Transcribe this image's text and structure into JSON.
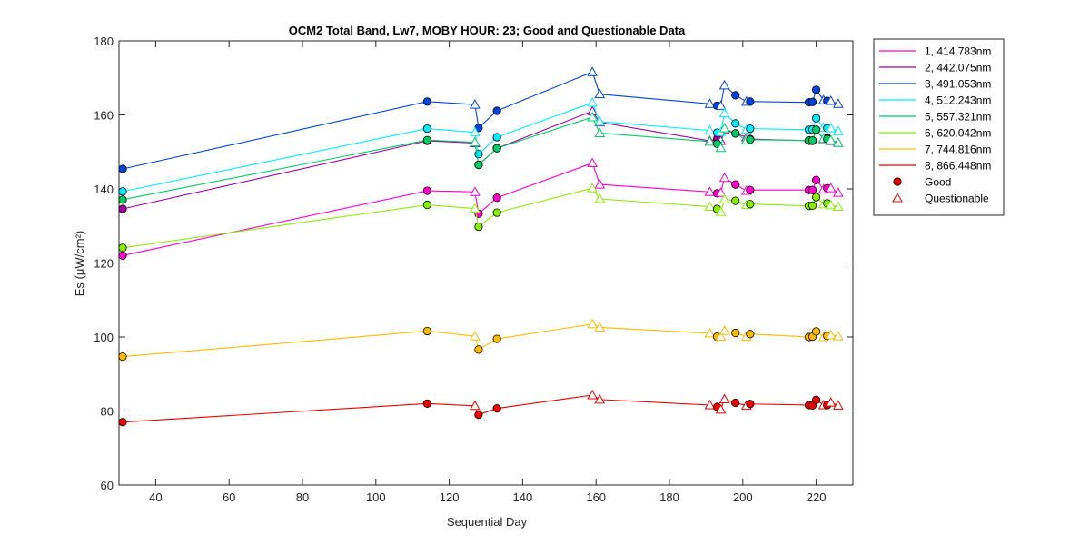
{
  "chart_data": {
    "type": "line",
    "title": "OCM2 Total Band,  Lw7, MOBY HOUR: 23;  Good and Questionable Data",
    "xlabel": "Sequential Day",
    "ylabel": "Es (μW/cm²)",
    "xlim": [
      30,
      230
    ],
    "ylim": [
      60,
      180
    ],
    "xticks": [
      40,
      60,
      80,
      100,
      120,
      140,
      160,
      180,
      200,
      220
    ],
    "yticks": [
      60,
      80,
      100,
      120,
      140,
      160,
      180
    ],
    "grid": false,
    "legend_position": "outside-right-top",
    "x": [
      31,
      114,
      127,
      128,
      133,
      159,
      161,
      191,
      193,
      194,
      195,
      198,
      201,
      202,
      218,
      219,
      220,
      222,
      223,
      224,
      226
    ],
    "quality": [
      "G",
      "G",
      "Q",
      "G",
      "G",
      "Q",
      "Q",
      "Q",
      "G",
      "Q",
      "Q",
      "G",
      "Q",
      "G",
      "G",
      "G",
      "G",
      "Q",
      "G",
      "Q",
      "Q"
    ],
    "series": [
      {
        "name": "1, 414.783nm",
        "color": "#ff00cc",
        "values": [
          122,
          139.5,
          139.2,
          133.3,
          137.6,
          147,
          141.2,
          139.2,
          138.8,
          139,
          143,
          141.2,
          139.5,
          139.7,
          139.7,
          139.7,
          142.4,
          139.9,
          140.2,
          140.2,
          139
        ]
      },
      {
        "name": "2, 442.075nm",
        "color": "#a000a0",
        "values": [
          134.6,
          153,
          152.4,
          146.5,
          151,
          161,
          158,
          153,
          153.5,
          153,
          156,
          155,
          154,
          153.5,
          153,
          153,
          156,
          153.5,
          153.8,
          153,
          152.5
        ]
      },
      {
        "name": "3, 491.053nm",
        "color": "#0044dd",
        "values": [
          145.4,
          163.6,
          162.8,
          156.5,
          161.1,
          171.6,
          165.6,
          163,
          162.5,
          162.5,
          168,
          165.3,
          163.6,
          163.6,
          163.4,
          163.5,
          166.8,
          164,
          163.8,
          163.8,
          163
        ]
      },
      {
        "name": "4, 512.243nm",
        "color": "#00eeff",
        "values": [
          139.3,
          156.3,
          155.3,
          149.4,
          154,
          163.3,
          158.2,
          155.8,
          155.2,
          155.4,
          160.5,
          157.7,
          156.1,
          156.3,
          156,
          156.1,
          159.1,
          156.6,
          156.4,
          156.4,
          155.6
        ]
      },
      {
        "name": "5, 557.321nm",
        "color": "#00cc66",
        "values": [
          137.1,
          153.2,
          152.6,
          146.5,
          151,
          159.4,
          155.1,
          152.8,
          152.2,
          151.1,
          156.4,
          155,
          153.2,
          153.3,
          153.1,
          153.1,
          156,
          153.6,
          153.5,
          153.2,
          152.5
        ]
      },
      {
        "name": "6, 620.042nm",
        "color": "#88ee00",
        "values": [
          124.1,
          135.7,
          134.7,
          129.8,
          133.6,
          140.2,
          137.3,
          135.2,
          134.6,
          133.8,
          137.2,
          136.8,
          135.7,
          135.9,
          135.4,
          135.5,
          137.8,
          135.9,
          136.1,
          135.6,
          135.2
        ]
      },
      {
        "name": "7, 744.816nm",
        "color": "#ffbb00",
        "values": [
          94.7,
          101.6,
          100.2,
          96.6,
          99.5,
          103.5,
          102.6,
          101,
          100.1,
          100.1,
          101.7,
          101.1,
          100.1,
          100.8,
          100,
          100.1,
          101.5,
          100,
          100.3,
          100.5,
          100.2
        ]
      },
      {
        "name": "8, 866.448nm",
        "color": "#ee0000",
        "values": [
          77,
          82,
          81.4,
          79,
          80.7,
          84.3,
          83.1,
          81.6,
          81.1,
          80.4,
          83.2,
          82.2,
          81.5,
          81.9,
          81.6,
          81.5,
          83,
          81.6,
          81.6,
          82.3,
          81.5
        ]
      }
    ],
    "legend_markers": [
      {
        "label": "Good",
        "shape": "circle",
        "color": "#ee0000"
      },
      {
        "label": "Questionable",
        "shape": "triangle",
        "color": "#ee0000"
      }
    ]
  }
}
